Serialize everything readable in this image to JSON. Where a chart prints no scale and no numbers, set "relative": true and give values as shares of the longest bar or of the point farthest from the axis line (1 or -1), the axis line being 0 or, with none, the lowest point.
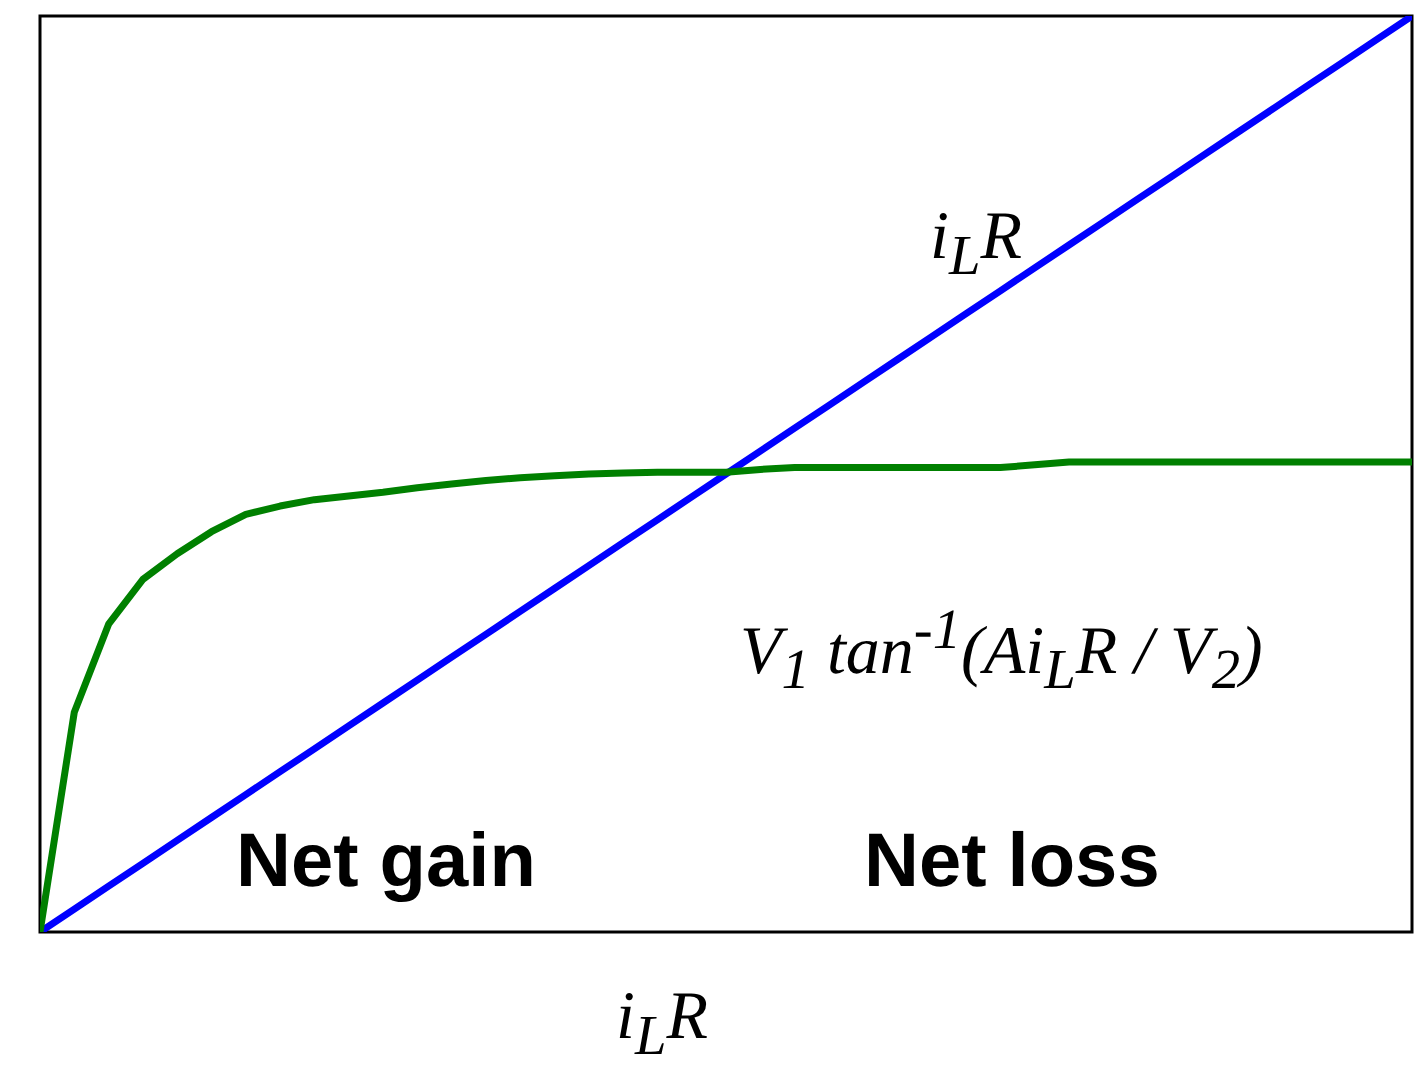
{
  "chart_data": {
    "type": "line",
    "relative": true,
    "xlabel": "i$_{L}$R",
    "categories": [
      null,
      null,
      null,
      null,
      null,
      null,
      null,
      null,
      null,
      null,
      null,
      null,
      null,
      null,
      null,
      null,
      null,
      null,
      null,
      null,
      null,
      null,
      null,
      null,
      null,
      null,
      null,
      null,
      null,
      null,
      null,
      null,
      null,
      null,
      null,
      null,
      null,
      null,
      null,
      null,
      null
    ],
    "series": [
      {
        "color": "#0000ff",
        "values": [
          0,
          0.025,
          0.05,
          0.075,
          0.1,
          0.125,
          0.15,
          0.175,
          0.2,
          0.225,
          0.25,
          0.275,
          0.3,
          0.325,
          0.35,
          0.375,
          0.4,
          0.425,
          0.45,
          0.475,
          0.5,
          0.525,
          0.55,
          0.575,
          0.6,
          0.625,
          0.65,
          0.675,
          0.7,
          0.725,
          0.75,
          0.775,
          0.8,
          0.825,
          0.85,
          0.875,
          0.9,
          0.925,
          0.95,
          0.975,
          1
        ]
      },
      {
        "color": "#008000",
        "values": [
          0,
          0.24,
          0.336,
          0.385,
          0.413,
          0.437,
          0.456,
          0.465,
          0.472,
          0.476,
          0.48,
          0.485,
          0.489,
          0.493,
          0.496,
          0.498,
          0.5,
          0.501,
          0.502,
          0.502,
          0.502,
          0.505,
          0.507,
          0.507,
          0.507,
          0.507,
          0.507,
          0.507,
          0.507,
          0.51,
          0.513,
          0.513,
          0.513,
          0.513,
          0.513,
          0.513,
          0.513,
          0.513,
          0.513,
          0.513,
          0.513
        ]
      }
    ],
    "line_style": "solid",
    "annotations": [
      "i$_{L}$R",
      "V$_{1}$ tan$^{-1}$(Ai$_{L}$R / V$_{2}$)",
      "Net gain",
      "Net loss"
    ]
  }
}
